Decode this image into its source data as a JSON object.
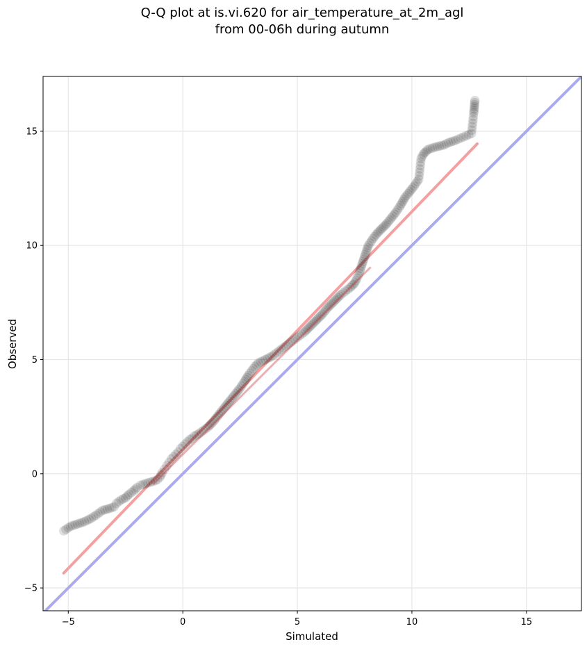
{
  "chart_data": {
    "type": "scatter",
    "title_line1": "Q-Q plot at is.vi.620 for air_temperature_at_2m_agl",
    "title_line2": "from 00-06h during autumn",
    "xlabel": "Simulated",
    "ylabel": "Observed",
    "xlim": [
      -6.1,
      17.4
    ],
    "ylim": [
      -6.0,
      17.4
    ],
    "xticks": [
      -5,
      0,
      5,
      10,
      15
    ],
    "yticks": [
      -5,
      0,
      5,
      10,
      15
    ],
    "xtick_labels": [
      "−5",
      "0",
      "5",
      "10",
      "15"
    ],
    "ytick_labels": [
      "−5",
      "0",
      "5",
      "10",
      "15"
    ],
    "grid": true,
    "colors": {
      "points": "#000000",
      "fit_line": "#f4a0a0",
      "fit_line_dense": "#c02020",
      "identity_line": "#aaaaee"
    },
    "identity_line": {
      "from": [
        -6.1,
        -6.1
      ],
      "to": [
        17.4,
        17.4
      ]
    },
    "fit_line": {
      "from": [
        -5.2,
        -4.35
      ],
      "to": [
        12.85,
        14.45
      ]
    },
    "points_x": [
      -5.2,
      -4.9,
      -4.6,
      -4.3,
      -4.0,
      -3.7,
      -3.5,
      -3.3,
      -3.0,
      -2.9,
      -2.7,
      -2.5,
      -2.35,
      -2.15,
      -2.0,
      -1.85,
      -1.2,
      -1.1,
      -1.0,
      -0.9,
      -0.8,
      -0.7,
      -0.6,
      -0.5,
      -0.4,
      -0.3,
      -0.2,
      -0.1,
      0.0,
      0.1,
      0.2,
      0.3,
      0.4,
      0.5,
      0.7,
      0.9,
      1.1,
      1.3,
      1.5,
      1.7,
      1.9,
      2.1,
      2.3,
      2.5,
      2.7,
      2.85,
      3.0,
      3.15,
      3.3,
      3.5,
      3.7,
      3.9,
      4.1,
      4.3,
      4.5,
      4.7,
      4.9,
      5.1,
      5.3,
      5.5,
      5.7,
      5.9,
      6.1,
      6.3,
      6.5,
      6.7,
      6.9,
      7.1,
      7.3,
      7.5,
      7.6,
      7.7,
      7.8,
      7.9,
      8.0,
      8.1,
      8.3,
      8.5,
      8.7,
      8.9,
      9.1,
      9.3,
      9.5,
      9.7,
      9.9,
      10.1,
      10.3,
      10.4,
      10.5,
      10.7,
      11.0,
      11.4,
      11.6,
      11.9,
      12.6,
      12.7,
      12.75
    ],
    "points_y": [
      -2.5,
      -2.3,
      -2.2,
      -2.1,
      -1.95,
      -1.75,
      -1.6,
      -1.55,
      -1.45,
      -1.3,
      -1.15,
      -1.05,
      -0.9,
      -0.75,
      -0.6,
      -0.5,
      -0.3,
      -0.25,
      -0.15,
      0.05,
      0.2,
      0.35,
      0.5,
      0.65,
      0.75,
      0.85,
      0.95,
      1.1,
      1.2,
      1.3,
      1.4,
      1.5,
      1.55,
      1.65,
      1.75,
      1.9,
      2.05,
      2.25,
      2.5,
      2.75,
      3.0,
      3.25,
      3.5,
      3.75,
      4.05,
      4.3,
      4.5,
      4.7,
      4.85,
      4.95,
      5.05,
      5.15,
      5.3,
      5.45,
      5.6,
      5.75,
      5.9,
      6.05,
      6.2,
      6.4,
      6.6,
      6.8,
      7.0,
      7.25,
      7.45,
      7.65,
      7.85,
      8.0,
      8.15,
      8.35,
      8.55,
      8.8,
      9.1,
      9.4,
      9.7,
      10.0,
      10.3,
      10.55,
      10.75,
      10.95,
      11.2,
      11.45,
      11.75,
      12.1,
      12.35,
      12.6,
      12.9,
      13.8,
      14.0,
      14.2,
      14.3,
      14.4,
      14.5,
      14.6,
      14.9,
      15.8,
      16.35
    ]
  }
}
